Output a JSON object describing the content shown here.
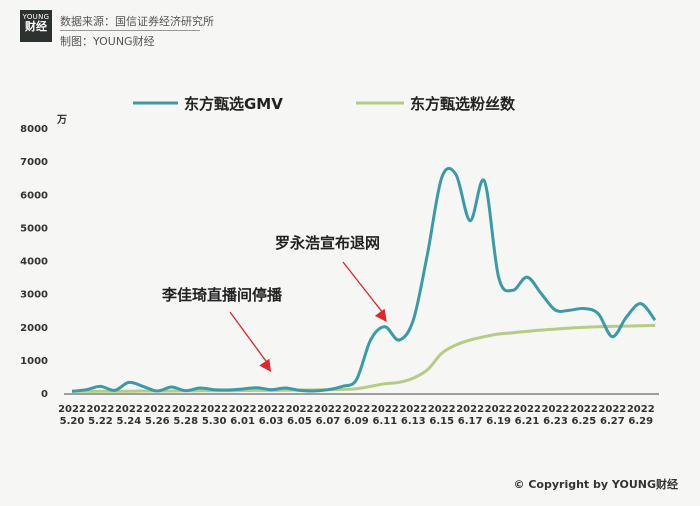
{
  "header": {
    "logo_top": "YOUNG",
    "logo_bottom": "财经",
    "source": "数据来源：国信证券经济研究所",
    "maker": "制图：YOUNG财经"
  },
  "footer": {
    "copyright": "© Copyright by YOUNG财经"
  },
  "colors": {
    "gmv": "#3a9aa8",
    "fans": "#b5cc85",
    "arrow": "#e0262a",
    "background": "#f6f6f4"
  },
  "chart_data": {
    "type": "line",
    "title": "",
    "xlabel": "",
    "ylabel": "万",
    "ylim": [
      0,
      8000
    ],
    "yticks": [
      0,
      1000,
      2000,
      3000,
      4000,
      5000,
      6000,
      7000,
      8000
    ],
    "grid": false,
    "legend_position": "top",
    "categories": [
      "5.20",
      "5.21",
      "5.22",
      "5.23",
      "5.24",
      "5.25",
      "5.26",
      "5.27",
      "5.28",
      "5.29",
      "5.30",
      "5.31",
      "6.01",
      "6.02",
      "6.03",
      "6.04",
      "6.05",
      "6.06",
      "6.07",
      "6.08",
      "6.09",
      "6.10",
      "6.11",
      "6.12",
      "6.13",
      "6.14",
      "6.15",
      "6.16",
      "6.17",
      "6.18",
      "6.19",
      "6.20",
      "6.21",
      "6.22",
      "6.23",
      "6.24",
      "6.25",
      "6.26",
      "6.27",
      "6.28",
      "6.29",
      "6.30"
    ],
    "tick_labels": [
      {
        "year": "2022",
        "date": "5.20"
      },
      {
        "year": "2022",
        "date": "5.22"
      },
      {
        "year": "2022",
        "date": "5.24"
      },
      {
        "year": "2022",
        "date": "5.26"
      },
      {
        "year": "2022",
        "date": "5.28"
      },
      {
        "year": "2022",
        "date": "5.30"
      },
      {
        "year": "2022",
        "date": "6.01"
      },
      {
        "year": "2022",
        "date": "6.03"
      },
      {
        "year": "2022",
        "date": "6.05"
      },
      {
        "year": "2022",
        "date": "6.07"
      },
      {
        "year": "2022",
        "date": "6.09"
      },
      {
        "year": "2022",
        "date": "6.11"
      },
      {
        "year": "2022",
        "date": "6.13"
      },
      {
        "year": "2022",
        "date": "6.15"
      },
      {
        "year": "2022",
        "date": "6.17"
      },
      {
        "year": "2022",
        "date": "6.19"
      },
      {
        "year": "2022",
        "date": "6.21"
      },
      {
        "year": "2022",
        "date": "6.23"
      },
      {
        "year": "2022",
        "date": "6.25"
      },
      {
        "year": "2022",
        "date": "6.27"
      },
      {
        "year": "2022",
        "date": "6.29"
      }
    ],
    "series": [
      {
        "name": "东方甄选GMV",
        "values": [
          50,
          100,
          200,
          80,
          320,
          200,
          60,
          180,
          70,
          150,
          100,
          90,
          120,
          160,
          100,
          150,
          80,
          60,
          100,
          200,
          400,
          1600,
          2000,
          1600,
          2200,
          4200,
          6500,
          6600,
          5200,
          6400,
          3500,
          3100,
          3500,
          3000,
          2500,
          2500,
          2550,
          2400,
          1700,
          2300,
          2700,
          2200
        ]
      },
      {
        "name": "东方甄选粉丝数",
        "values": [
          50,
          50,
          50,
          55,
          55,
          60,
          60,
          60,
          65,
          65,
          70,
          70,
          75,
          80,
          80,
          85,
          90,
          95,
          100,
          110,
          130,
          200,
          280,
          320,
          450,
          700,
          1200,
          1450,
          1600,
          1700,
          1780,
          1820,
          1860,
          1900,
          1930,
          1960,
          1980,
          2000,
          2010,
          2020,
          2030,
          2040
        ]
      }
    ],
    "annotations": [
      {
        "text": "李佳琦直播间停播",
        "category": "6.03"
      },
      {
        "text": "罗永浩宣布退网",
        "category": "6.11"
      }
    ]
  }
}
